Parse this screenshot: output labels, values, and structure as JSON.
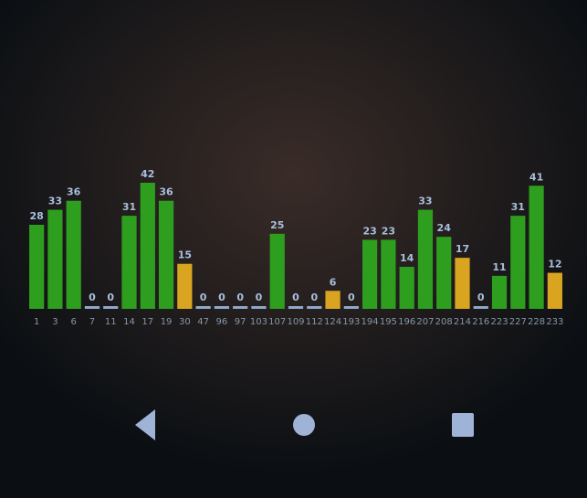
{
  "chart_data": {
    "type": "bar",
    "categories": [
      "1",
      "3",
      "6",
      "7",
      "11",
      "14",
      "17",
      "19",
      "30",
      "47",
      "96",
      "97",
      "103",
      "107",
      "109",
      "112",
      "124",
      "193",
      "194",
      "195",
      "196",
      "207",
      "208",
      "214",
      "216",
      "223",
      "227",
      "228",
      "233"
    ],
    "values": [
      28,
      33,
      36,
      0,
      0,
      31,
      42,
      36,
      15,
      0,
      0,
      0,
      0,
      25,
      0,
      0,
      6,
      0,
      23,
      23,
      14,
      33,
      24,
      17,
      0,
      11,
      31,
      41,
      12
    ],
    "colors": [
      "#2e9e1f",
      "#2e9e1f",
      "#2e9e1f",
      "#8fa8c8",
      "#8fa8c8",
      "#2e9e1f",
      "#2e9e1f",
      "#2e9e1f",
      "#d9a521",
      "#8fa8c8",
      "#8fa8c8",
      "#8fa8c8",
      "#8fa8c8",
      "#2e9e1f",
      "#8fa8c8",
      "#8fa8c8",
      "#d9a521",
      "#8fa8c8",
      "#2e9e1f",
      "#2e9e1f",
      "#2e9e1f",
      "#2e9e1f",
      "#2e9e1f",
      "#d9a521",
      "#8fa8c8",
      "#2e9e1f",
      "#2e9e1f",
      "#2e9e1f",
      "#d9a521"
    ]
  }
}
